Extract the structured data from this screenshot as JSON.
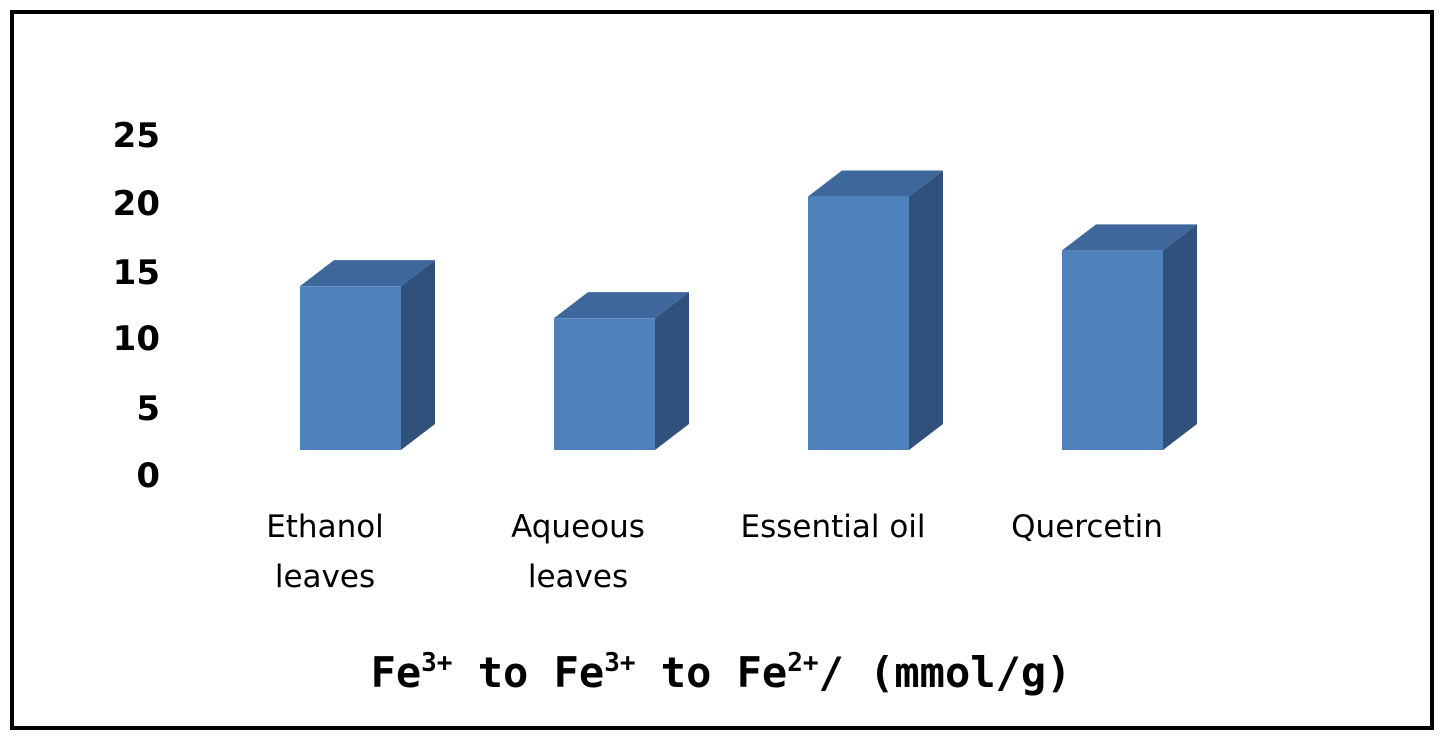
{
  "chart_data": {
    "type": "bar",
    "style": "3d-column",
    "categories": [
      [
        "Ethanol",
        "leaves"
      ],
      [
        "Aqueous",
        "leaves"
      ],
      [
        "Essential oil"
      ],
      [
        "Quercetin"
      ]
    ],
    "values": [
      12.8,
      10.3,
      19.8,
      15.6
    ],
    "ylim": [
      0,
      25
    ],
    "yticks": [
      0,
      5,
      10,
      15,
      20,
      25
    ],
    "grid": false,
    "legend": false,
    "xlabel": {
      "parts": [
        {
          "text": "Fe",
          "sup": "3+"
        },
        {
          "text": " to Fe",
          "sup": "3+"
        },
        {
          "text": " to Fe",
          "sup": "2+"
        },
        {
          "text": "/ (mmol/g)",
          "sup": ""
        }
      ]
    },
    "colors": {
      "front": "#4f81bd",
      "top": "#3e679c",
      "side": "#30517b",
      "frame": "#000000"
    }
  }
}
